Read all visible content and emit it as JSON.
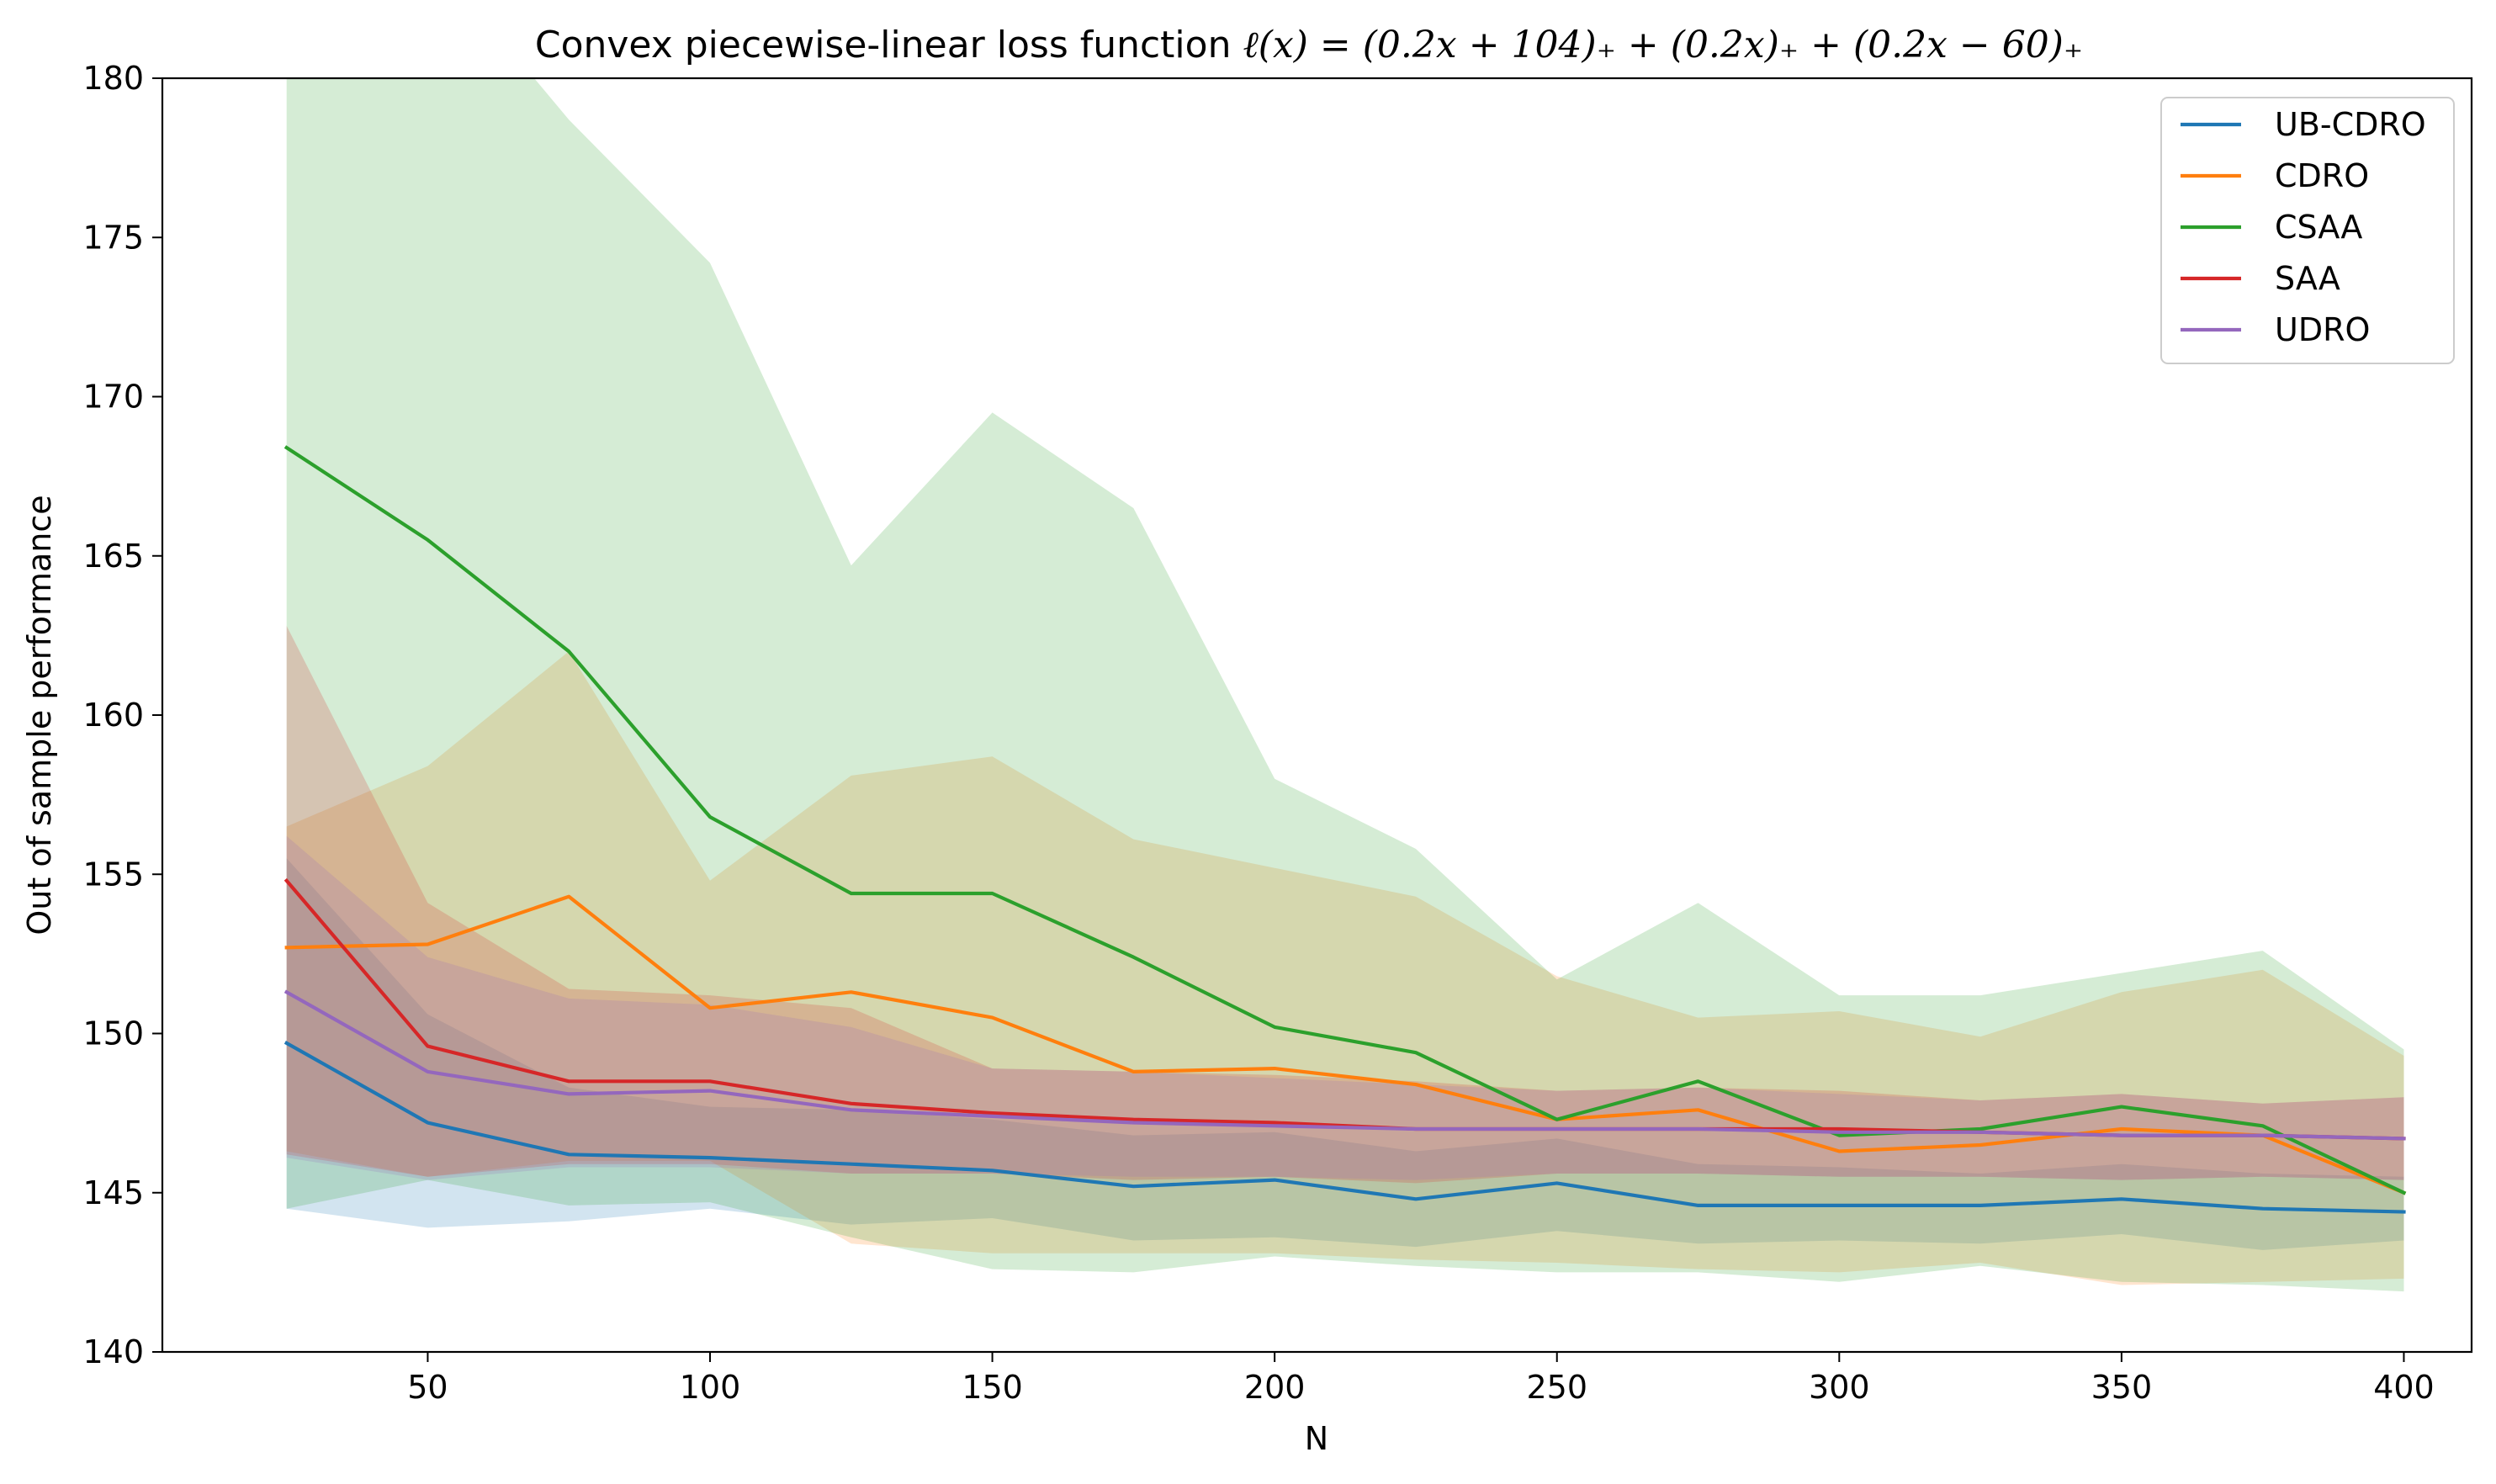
{
  "chart_data": {
    "type": "line",
    "title_prefix": "Convex piecewise-linear loss function ",
    "title_formula": "ℓ(x) = (0.2x + 104)₊ + (0.2x)₊ + (0.2x − 60)₊",
    "xlabel": "N",
    "ylabel": "Out of sample performance",
    "x": [
      25,
      50,
      75,
      100,
      125,
      150,
      175,
      200,
      225,
      250,
      275,
      300,
      325,
      350,
      375,
      400
    ],
    "xlim": [
      3,
      412
    ],
    "ylim": [
      140,
      180
    ],
    "xticks": [
      50,
      100,
      150,
      200,
      250,
      300,
      350,
      400
    ],
    "yticks": [
      140,
      145,
      150,
      155,
      160,
      165,
      170,
      175,
      180
    ],
    "grid": false,
    "legend_position": "top-right",
    "band_opacity": 0.2,
    "series": [
      {
        "name": "UB-CDRO",
        "color": "#1f77b4",
        "values": [
          149.7,
          147.2,
          146.2,
          146.1,
          145.9,
          145.7,
          145.2,
          145.4,
          144.8,
          145.3,
          144.6,
          144.6,
          144.6,
          144.8,
          144.5,
          144.4
        ],
        "band_lower": [
          144.5,
          143.9,
          144.1,
          144.5,
          144.0,
          144.2,
          143.5,
          143.6,
          143.3,
          143.8,
          143.4,
          143.5,
          143.4,
          143.7,
          143.2,
          143.5
        ],
        "band_upper": [
          155.5,
          150.6,
          148.3,
          147.7,
          147.6,
          147.3,
          146.8,
          146.9,
          146.3,
          146.7,
          145.9,
          145.8,
          145.6,
          145.9,
          145.6,
          145.5
        ]
      },
      {
        "name": "CDRO",
        "color": "#ff7f0e",
        "values": [
          152.7,
          152.8,
          154.3,
          150.8,
          151.3,
          150.5,
          148.8,
          148.9,
          148.4,
          147.3,
          147.6,
          146.3,
          146.5,
          147.0,
          146.8,
          145.0
        ],
        "band_lower": [
          146.3,
          145.5,
          146.0,
          146.0,
          143.4,
          143.1,
          143.1,
          143.1,
          142.9,
          142.8,
          142.6,
          142.5,
          142.8,
          142.1,
          142.2,
          142.3
        ],
        "band_upper": [
          156.5,
          158.4,
          162.0,
          154.8,
          158.1,
          158.7,
          156.1,
          155.2,
          154.3,
          151.8,
          150.5,
          150.7,
          149.9,
          151.3,
          152.0,
          149.3
        ]
      },
      {
        "name": "CSAA",
        "color": "#2ca02c",
        "values": [
          168.4,
          165.5,
          162.0,
          156.8,
          154.4,
          154.4,
          152.4,
          150.2,
          149.4,
          147.3,
          148.5,
          146.8,
          147.0,
          147.7,
          147.1,
          145.0
        ],
        "band_lower": [
          144.5,
          145.4,
          144.6,
          144.7,
          143.6,
          142.6,
          142.5,
          143.0,
          142.7,
          142.5,
          142.5,
          142.2,
          142.7,
          142.2,
          142.1,
          141.9
        ],
        "band_upper": [
          180.5,
          184.0,
          178.7,
          174.2,
          164.7,
          169.5,
          166.5,
          158.0,
          155.8,
          151.7,
          154.1,
          151.2,
          151.2,
          151.9,
          152.6,
          149.5
        ]
      },
      {
        "name": "SAA",
        "color": "#d62728",
        "values": [
          154.8,
          149.6,
          148.5,
          148.5,
          147.8,
          147.5,
          147.3,
          147.2,
          147.0,
          147.0,
          147.0,
          147.0,
          146.9,
          146.8,
          146.8,
          146.7
        ],
        "band_lower": [
          146.2,
          145.5,
          145.9,
          145.9,
          145.6,
          145.6,
          145.4,
          145.5,
          145.3,
          145.6,
          145.6,
          145.5,
          145.5,
          145.4,
          145.5,
          145.4
        ],
        "band_upper": [
          162.8,
          154.1,
          151.4,
          151.2,
          150.8,
          148.9,
          148.8,
          148.7,
          148.5,
          148.2,
          148.3,
          148.2,
          147.9,
          148.1,
          147.8,
          148.0
        ]
      },
      {
        "name": "UDRO",
        "color": "#9467bd",
        "values": [
          151.3,
          148.8,
          148.1,
          148.2,
          147.6,
          147.4,
          147.2,
          147.1,
          147.0,
          147.0,
          147.0,
          146.9,
          146.9,
          146.8,
          146.8,
          146.7
        ],
        "band_lower": [
          146.1,
          145.4,
          145.8,
          145.8,
          145.6,
          145.6,
          145.5,
          145.5,
          145.4,
          145.6,
          145.6,
          145.5,
          145.5,
          145.4,
          145.5,
          145.4
        ],
        "band_upper": [
          156.2,
          152.4,
          151.1,
          150.9,
          150.2,
          148.9,
          148.8,
          148.6,
          148.4,
          148.2,
          148.3,
          148.1,
          147.9,
          148.1,
          147.8,
          148.0
        ]
      }
    ]
  }
}
